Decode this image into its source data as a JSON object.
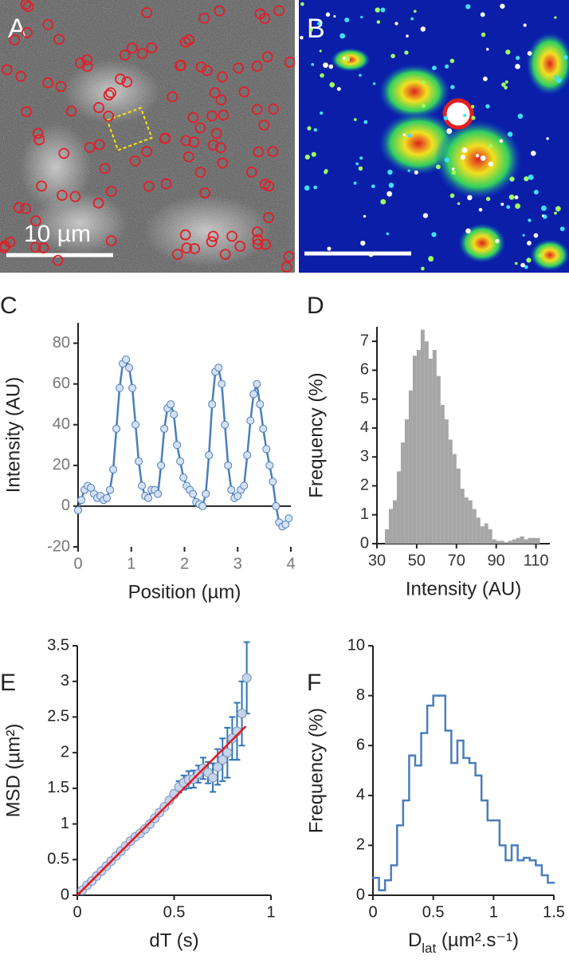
{
  "panels": [
    {
      "label": "A",
      "scale_bar": "10 µm"
    },
    {
      "label": "B"
    }
  ],
  "chart_data": [
    {
      "type": "line",
      "label": "C",
      "xlabel": "Position (µm)",
      "ylabel": "Intensity (AU)",
      "x": [
        0,
        0.06,
        0.12,
        0.18,
        0.24,
        0.3,
        0.36,
        0.42,
        0.48,
        0.54,
        0.6,
        0.66,
        0.72,
        0.78,
        0.84,
        0.9,
        0.96,
        1.02,
        1.08,
        1.14,
        1.2,
        1.26,
        1.32,
        1.38,
        1.44,
        1.5,
        1.56,
        1.62,
        1.68,
        1.74,
        1.8,
        1.86,
        1.92,
        1.98,
        2.04,
        2.1,
        2.16,
        2.22,
        2.28,
        2.34,
        2.4,
        2.46,
        2.52,
        2.58,
        2.64,
        2.7,
        2.76,
        2.82,
        2.88,
        2.94,
        3.0,
        3.06,
        3.12,
        3.18,
        3.24,
        3.3,
        3.36,
        3.42,
        3.48,
        3.54,
        3.6,
        3.66,
        3.72,
        3.78,
        3.84,
        3.9,
        3.96
      ],
      "series": [
        {
          "color": "#4a7ebb",
          "marker_fill": "#d5e0f2",
          "values": [
            -2,
            3,
            8,
            10,
            9,
            6,
            4,
            5,
            3,
            4,
            8,
            18,
            38,
            58,
            70,
            72,
            68,
            58,
            40,
            22,
            10,
            5,
            4,
            8,
            8,
            6,
            20,
            38,
            48,
            50,
            45,
            30,
            22,
            14,
            10,
            8,
            6,
            2,
            1,
            0,
            6,
            25,
            50,
            66,
            68,
            60,
            40,
            20,
            8,
            4,
            5,
            8,
            10,
            25,
            42,
            55,
            60,
            50,
            38,
            28,
            20,
            12,
            0,
            -8,
            -10,
            -9,
            -6
          ]
        }
      ],
      "xlim": [
        0,
        4
      ],
      "ylim": [
        -20,
        90
      ],
      "xticks": [
        0,
        1,
        2,
        3,
        4
      ],
      "yticks": [
        -20,
        0,
        20,
        40,
        60,
        80
      ]
    },
    {
      "type": "histogram",
      "label": "D",
      "xlabel": "Intensity (AU)",
      "ylabel": "Frequency (%)",
      "color": "#a6a6a6",
      "bins": [
        30,
        32,
        34,
        36,
        38,
        40,
        42,
        44,
        46,
        48,
        50,
        52,
        54,
        56,
        58,
        60,
        62,
        64,
        66,
        68,
        70,
        72,
        74,
        76,
        78,
        80,
        82,
        84,
        86,
        88,
        90,
        92,
        94,
        96,
        98,
        100,
        102,
        104,
        106,
        108,
        110,
        112
      ],
      "values": [
        0,
        0,
        0.5,
        1.2,
        1.5,
        2.5,
        3.5,
        4.3,
        5.3,
        6.5,
        6.7,
        7.4,
        7.0,
        6.4,
        6.7,
        5.8,
        4.8,
        4.3,
        3.6,
        3.1,
        2.6,
        1.9,
        1.6,
        1.5,
        1.2,
        0.9,
        0.6,
        0.7,
        0.5,
        0.15,
        0.1,
        0.1,
        0.05,
        0.1,
        0.15,
        0.2,
        0.25,
        0.15,
        0.2,
        0.2,
        0.2
      ],
      "xlim": [
        30,
        117
      ],
      "ylim": [
        0,
        7.5
      ],
      "xticks": [
        30,
        50,
        70,
        90,
        110
      ],
      "yticks": [
        0,
        1,
        2,
        3,
        4,
        5,
        6,
        7
      ]
    },
    {
      "type": "scatter",
      "label": "E",
      "xlabel": "dT (s)",
      "ylabel": "MSD (µm²)",
      "series": [
        {
          "color": "#2e75b6",
          "marker_fill": "#c5d4ec",
          "x": [
            0.025,
            0.05,
            0.075,
            0.1,
            0.125,
            0.15,
            0.175,
            0.2,
            0.225,
            0.25,
            0.275,
            0.3,
            0.325,
            0.35,
            0.375,
            0.4,
            0.425,
            0.45,
            0.475,
            0.5,
            0.525,
            0.55,
            0.575,
            0.6,
            0.625,
            0.65,
            0.675,
            0.7,
            0.725,
            0.75,
            0.775,
            0.8,
            0.825,
            0.85,
            0.875
          ],
          "values": [
            0.07,
            0.14,
            0.2,
            0.27,
            0.34,
            0.41,
            0.48,
            0.55,
            0.62,
            0.69,
            0.76,
            0.82,
            0.87,
            0.93,
            1.0,
            1.08,
            1.16,
            1.24,
            1.33,
            1.42,
            1.52,
            1.58,
            1.62,
            1.63,
            1.7,
            1.78,
            1.72,
            1.65,
            1.8,
            1.9,
            2.0,
            2.2,
            2.3,
            2.55,
            3.05
          ],
          "errors": [
            0.01,
            0.01,
            0.01,
            0.01,
            0.01,
            0.01,
            0.01,
            0.01,
            0.02,
            0.02,
            0.02,
            0.02,
            0.02,
            0.02,
            0.03,
            0.03,
            0.03,
            0.03,
            0.04,
            0.05,
            0.08,
            0.1,
            0.12,
            0.12,
            0.12,
            0.15,
            0.15,
            0.2,
            0.25,
            0.3,
            0.35,
            0.3,
            0.4,
            0.45,
            0.5
          ]
        },
        {
          "color": "#e8161b",
          "x": [
            0,
            0.87
          ],
          "values": [
            0,
            2.37
          ]
        }
      ],
      "xlim": [
        0,
        1
      ],
      "ylim": [
        0,
        3.5
      ],
      "xticks": [
        0,
        0.5,
        1
      ],
      "yticks": [
        0,
        0.5,
        1,
        1.5,
        2,
        2.5,
        3,
        3.5
      ]
    },
    {
      "type": "histogram",
      "histtype": "step",
      "label": "F",
      "xlabel": [
        "D",
        "lat",
        " (µm².s⁻¹)"
      ],
      "ylabel": "Frequency (%)",
      "color": "#4a7ebb",
      "bins": [
        0,
        0.05,
        0.1,
        0.15,
        0.2,
        0.25,
        0.3,
        0.35,
        0.4,
        0.45,
        0.5,
        0.55,
        0.6,
        0.65,
        0.7,
        0.75,
        0.8,
        0.85,
        0.9,
        0.95,
        1.0,
        1.05,
        1.1,
        1.15,
        1.2,
        1.25,
        1.3,
        1.35,
        1.4,
        1.45,
        1.5
      ],
      "values": [
        0.7,
        0.2,
        0.6,
        1.2,
        2.8,
        3.8,
        5.6,
        5.2,
        6.5,
        7.6,
        8.0,
        8.0,
        6.6,
        5.3,
        6.2,
        5.5,
        5.3,
        4.8,
        3.8,
        3.0,
        3.0,
        2.0,
        1.4,
        2.0,
        1.4,
        1.5,
        1.4,
        1.2,
        0.8,
        0.5
      ],
      "xlim": [
        0,
        1.5
      ],
      "ylim": [
        0,
        10
      ],
      "xticks": [
        0,
        0.5,
        1,
        1.5
      ],
      "yticks": [
        0,
        2,
        4,
        6,
        8,
        10
      ]
    }
  ]
}
